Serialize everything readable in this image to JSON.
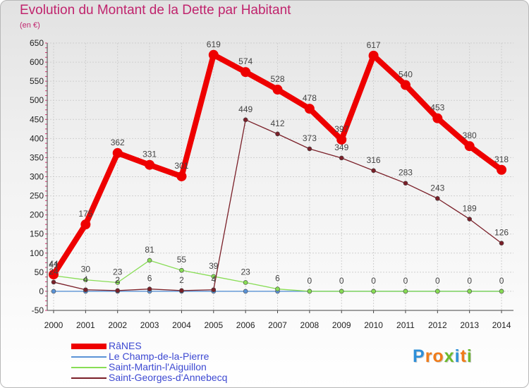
{
  "header": {
    "title": "Evolution du Montant de la Dette par Habitant",
    "unit": "(en €)"
  },
  "chart_data": {
    "type": "line",
    "title": "Evolution du Montant de la Dette par Habitant",
    "ylabel": "(en €)",
    "xlabel": "",
    "categories": [
      "2000",
      "2001",
      "2002",
      "2003",
      "2004",
      "2005",
      "2006",
      "2007",
      "2008",
      "2009",
      "2010",
      "2011",
      "2012",
      "2013",
      "2014"
    ],
    "ylim": [
      -50,
      650
    ],
    "yticks": [
      -50,
      0,
      50,
      100,
      150,
      200,
      250,
      300,
      350,
      400,
      450,
      500,
      550,
      600,
      650
    ],
    "grid": true,
    "legend_position": "bottom-left",
    "series": [
      {
        "name": "RâNES",
        "color": "#ee0000",
        "values": [
          44,
          175,
          362,
          331,
          301,
          619,
          574,
          528,
          478,
          397,
          617,
          540,
          453,
          380,
          318
        ]
      },
      {
        "name": "Le Champ-de-la-Pierre",
        "color": "#5b93d6",
        "values": [
          0,
          0,
          0,
          0,
          0,
          0,
          0,
          0,
          0,
          0,
          0,
          0,
          0,
          0,
          0
        ]
      },
      {
        "name": "Saint-Martin-l'Aiguillon",
        "color": "#88dd55",
        "values": [
          41,
          30,
          23,
          81,
          55,
          39,
          23,
          6,
          0,
          0,
          0,
          0,
          0,
          0,
          0
        ]
      },
      {
        "name": "Saint-Georges-d'Annebecq",
        "color": "#7a1f28",
        "values": [
          24,
          4,
          2,
          6,
          2,
          4,
          449,
          412,
          373,
          349,
          316,
          283,
          243,
          189,
          126
        ]
      }
    ]
  },
  "logo": {
    "letters": [
      {
        "ch": "P",
        "color": "#2e8fd8"
      },
      {
        "ch": "r",
        "color": "#f07c1a"
      },
      {
        "ch": "o",
        "color": "#f07c1a"
      },
      {
        "ch": "x",
        "color": "#6cba2e"
      },
      {
        "ch": "i",
        "color": "#2e8fd8"
      },
      {
        "ch": "t",
        "color": "#f07c1a"
      },
      {
        "ch": "i",
        "color": "#6cba2e"
      }
    ]
  }
}
